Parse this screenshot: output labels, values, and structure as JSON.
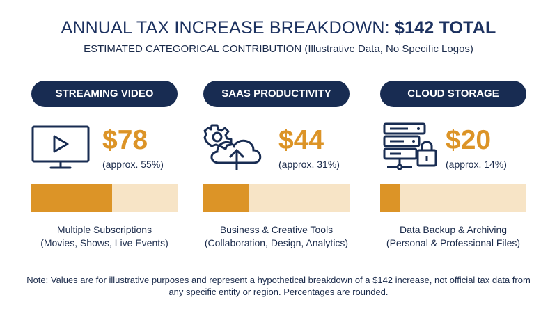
{
  "header": {
    "title_prefix": "ANNUAL TAX INCREASE BREAKDOWN: ",
    "title_total": "$142 TOTAL",
    "subtitle": "ESTIMATED CATEGORICAL CONTRIBUTION (Illustrative Data, No Specific Logos)"
  },
  "cards": [
    {
      "label": "STREAMING VIDEO",
      "amount": "$78",
      "approx": "(approx. 55%)",
      "desc_line1": "Multiple Subscriptions",
      "desc_line2": "(Movies, Shows, Live Events)",
      "icon": "monitor-play-icon"
    },
    {
      "label": "SAAS PRODUCTIVITY",
      "amount": "$44",
      "approx": "(approx. 31%)",
      "desc_line1": "Business & Creative Tools",
      "desc_line2": "(Collaboration, Design, Analytics)",
      "icon": "gear-cloud-upload-icon"
    },
    {
      "label": "CLOUD STORAGE",
      "amount": "$20",
      "approx": "(approx. 14%)",
      "desc_line1": "Data Backup & Archiving",
      "desc_line2": "(Personal & Professional Files)",
      "icon": "server-lock-icon"
    }
  ],
  "chart_data": {
    "type": "bar",
    "categories": [
      "STREAMING VIDEO",
      "SAAS PRODUCTIVITY",
      "CLOUD STORAGE"
    ],
    "values": [
      78,
      44,
      20
    ],
    "percentages": [
      55,
      31,
      14
    ],
    "total": 142,
    "title": "ANNUAL TAX INCREASE BREAKDOWN: $142 TOTAL",
    "subtitle": "ESTIMATED CATEGORICAL CONTRIBUTION (Illustrative Data, No Specific Logos)"
  },
  "footer": {
    "note": "Note: Values are for illustrative purposes and represent a hypothetical breakdown of a $142 increase, not official tax data from any specific entity or region. Percentages are rounded."
  },
  "colors": {
    "navy": "#182c52",
    "accent": "#dc9427",
    "track": "#f7e4c6"
  }
}
